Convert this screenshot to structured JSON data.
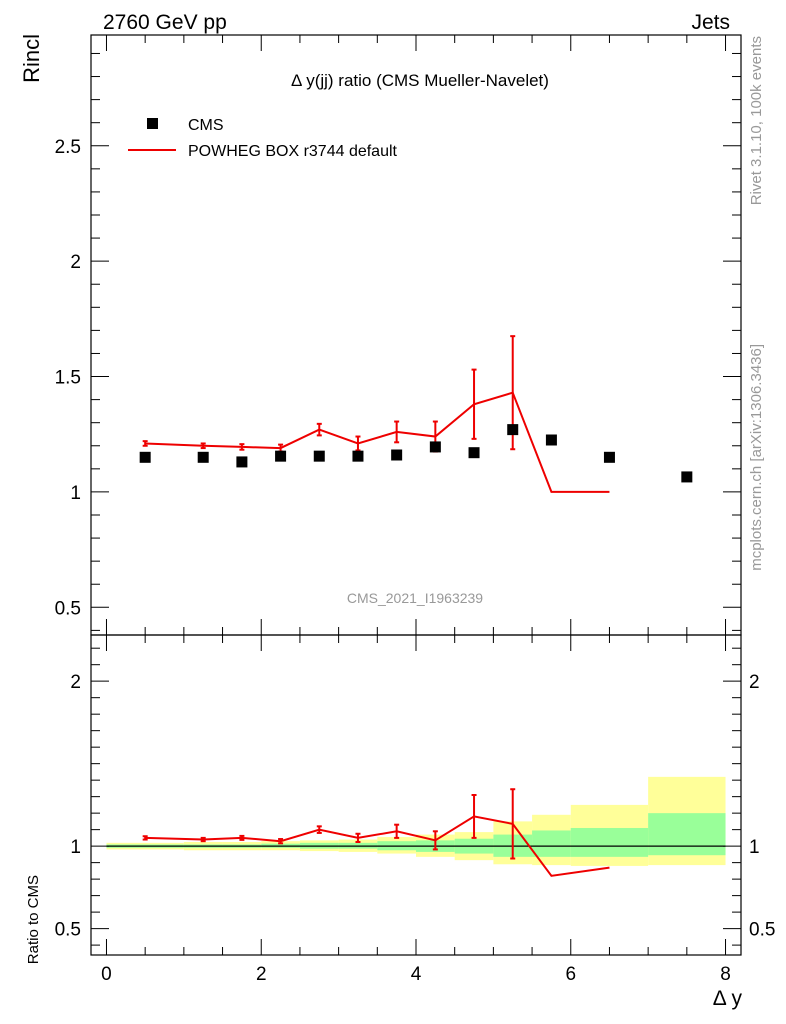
{
  "header": {
    "left": "2760 GeV pp",
    "right": "Jets"
  },
  "side": {
    "rivet": "Rivet 3.1.10,  100k events",
    "mcplots": "mcplots.cern.ch [arXiv:1306.3436]"
  },
  "chart_data": [
    {
      "panel": "main",
      "type": "scatter",
      "title": "Δ y(jj) ratio (CMS Mueller-Navelet)",
      "ylabel": "Rincl",
      "watermark": "CMS_2021_I1963239",
      "xlim": [
        -0.2,
        8.2
      ],
      "ylim": [
        0.38,
        2.98
      ],
      "yticks": [
        0.5,
        1,
        1.5,
        2,
        2.5
      ],
      "ytick_labels": [
        "0.5",
        "1",
        "1.5",
        "2",
        "2.5"
      ],
      "legend": [
        "CMS",
        "POWHEG BOX r3744 default"
      ],
      "series": [
        {
          "name": "CMS",
          "style": "markers",
          "color": "#000000",
          "x": [
            0.5,
            1.25,
            1.75,
            2.25,
            2.75,
            3.25,
            3.75,
            4.25,
            4.75,
            5.25,
            5.75,
            6.5,
            7.5
          ],
          "y": [
            1.15,
            1.15,
            1.13,
            1.155,
            1.155,
            1.155,
            1.16,
            1.195,
            1.17,
            1.27,
            1.225,
            1.15,
            1.065
          ]
        },
        {
          "name": "POWHEG BOX r3744 default",
          "style": "line",
          "color": "#ee0000",
          "x": [
            0.5,
            1.25,
            1.75,
            2.25,
            2.75,
            3.25,
            3.75,
            4.25,
            4.75,
            5.25,
            5.75,
            6.5
          ],
          "y": [
            1.21,
            1.2,
            1.195,
            1.19,
            1.27,
            1.21,
            1.26,
            1.24,
            1.38,
            1.43,
            1.0,
            1.0
          ],
          "err": [
            0.01,
            0.01,
            0.012,
            0.015,
            0.025,
            0.03,
            0.045,
            0.065,
            0.15,
            0.245,
            0,
            0
          ]
        }
      ]
    },
    {
      "panel": "ratio",
      "type": "line",
      "ylabel": "Ratio to CMS",
      "xlabel": "Δ y",
      "xlim": [
        -0.2,
        8.2
      ],
      "ylim": [
        0.34,
        2.28
      ],
      "yticks": [
        0.5,
        1,
        2
      ],
      "ytick_labels": [
        "0.5",
        "1",
        "2"
      ],
      "xticks": [
        0,
        2,
        4,
        6,
        8
      ],
      "xtick_labels": [
        "0",
        "2",
        "4",
        "6",
        "8"
      ],
      "bands": {
        "edges": [
          0,
          1,
          1.5,
          2,
          2.5,
          3,
          3.5,
          4,
          4.5,
          5,
          5.5,
          6,
          7,
          8
        ],
        "yellow_lo": [
          0.98,
          0.975,
          0.975,
          0.975,
          0.97,
          0.965,
          0.955,
          0.935,
          0.915,
          0.89,
          0.885,
          0.88,
          0.885
        ],
        "yellow_hi": [
          1.02,
          1.025,
          1.025,
          1.03,
          1.035,
          1.04,
          1.055,
          1.07,
          1.085,
          1.15,
          1.19,
          1.25,
          1.42
        ],
        "green_lo": [
          0.99,
          0.99,
          0.99,
          0.99,
          0.985,
          0.985,
          0.975,
          0.965,
          0.955,
          0.935,
          0.935,
          0.935,
          0.945
        ],
        "green_hi": [
          1.01,
          1.01,
          1.01,
          1.015,
          1.02,
          1.02,
          1.03,
          1.035,
          1.045,
          1.07,
          1.095,
          1.11,
          1.2
        ]
      },
      "series": [
        {
          "name": "POWHEG BOX r3744 default / CMS",
          "color": "#ee0000",
          "x": [
            0.5,
            1.25,
            1.75,
            2.25,
            2.75,
            3.25,
            3.75,
            4.25,
            4.75,
            5.25,
            5.75,
            6.5
          ],
          "y": [
            1.05,
            1.04,
            1.05,
            1.03,
            1.1,
            1.05,
            1.09,
            1.035,
            1.18,
            1.135,
            0.82,
            0.87
          ],
          "err": [
            0.01,
            0.01,
            0.012,
            0.013,
            0.02,
            0.025,
            0.04,
            0.055,
            0.13,
            0.21,
            0,
            0
          ]
        }
      ]
    }
  ]
}
